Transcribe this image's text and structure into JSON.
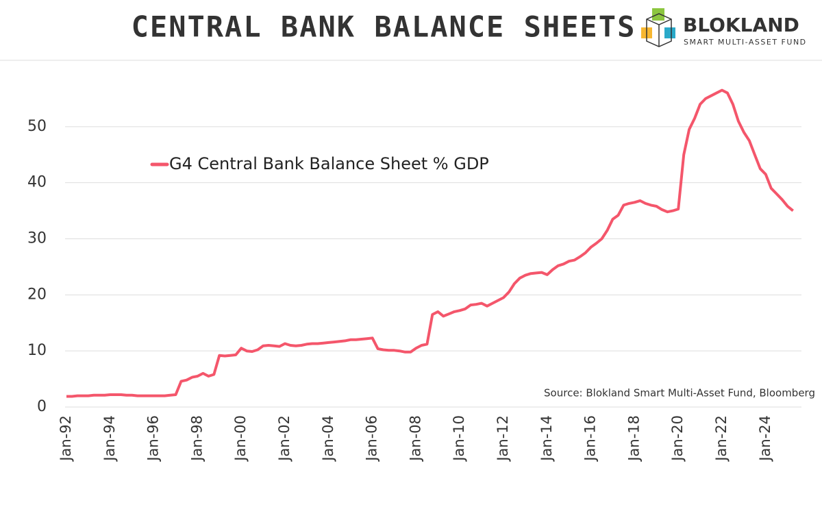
{
  "logo": {
    "name": "BLOKLAND",
    "tagline": "SMART MULTI-ASSET FUND"
  },
  "chart_data": {
    "type": "line",
    "title": "CENTRAL BANK BALANCE SHEETS",
    "source": "Source: Blokland Smart Multi-Asset Fund, Bloomberg",
    "categories": [
      "Jan-92",
      null,
      null,
      null,
      null,
      null,
      null,
      null,
      "Jan-94",
      null,
      null,
      null,
      null,
      null,
      null,
      null,
      "Jan-96",
      null,
      null,
      null,
      null,
      null,
      null,
      null,
      "Jan-98",
      null,
      null,
      null,
      null,
      null,
      null,
      null,
      "Jan-00",
      null,
      null,
      null,
      null,
      null,
      null,
      null,
      "Jan-02",
      null,
      null,
      null,
      null,
      null,
      null,
      null,
      "Jan-04",
      null,
      null,
      null,
      null,
      null,
      null,
      null,
      "Jan-06",
      null,
      null,
      null,
      null,
      null,
      null,
      null,
      "Jan-08",
      null,
      null,
      null,
      null,
      null,
      null,
      null,
      "Jan-10",
      null,
      null,
      null,
      null,
      null,
      null,
      null,
      "Jan-12",
      null,
      null,
      null,
      null,
      null,
      null,
      null,
      "Jan-14",
      null,
      null,
      null,
      null,
      null,
      null,
      null,
      "Jan-16",
      null,
      null,
      null,
      null,
      null,
      null,
      null,
      "Jan-18",
      null,
      null,
      null,
      null,
      null,
      null,
      null,
      "Jan-20",
      null,
      null,
      null,
      null,
      null,
      null,
      null,
      "Jan-22",
      null,
      null,
      null,
      null,
      null,
      null,
      null,
      "Jan-24",
      null,
      null,
      null,
      null,
      null
    ],
    "series": [
      {
        "name": "G4 Central Bank Balance Sheet % GDP",
        "color": "#f4566b",
        "values": [
          1.9,
          1.9,
          2.0,
          2.0,
          2.0,
          2.1,
          2.1,
          2.1,
          2.2,
          2.2,
          2.2,
          2.1,
          2.1,
          2.0,
          2.0,
          2.0,
          2.0,
          2.0,
          2.0,
          2.1,
          2.2,
          4.6,
          4.8,
          5.3,
          5.5,
          6.0,
          5.5,
          5.8,
          9.2,
          9.1,
          9.2,
          9.3,
          10.5,
          10.0,
          9.9,
          10.2,
          10.9,
          11.0,
          10.9,
          10.8,
          11.3,
          11.0,
          10.9,
          11.0,
          11.2,
          11.3,
          11.3,
          11.4,
          11.5,
          11.6,
          11.7,
          11.8,
          12.0,
          12.0,
          12.1,
          12.2,
          12.3,
          10.4,
          10.2,
          10.1,
          10.1,
          10.0,
          9.8,
          9.8,
          10.5,
          11.0,
          11.2,
          16.5,
          17.0,
          16.2,
          16.6,
          17.0,
          17.2,
          17.5,
          18.2,
          18.3,
          18.5,
          18.0,
          18.5,
          19.0,
          19.5,
          20.5,
          22.0,
          23.0,
          23.5,
          23.8,
          23.9,
          24.0,
          23.6,
          24.5,
          25.2,
          25.5,
          26.0,
          26.2,
          26.8,
          27.5,
          28.5,
          29.2,
          30.0,
          31.5,
          33.5,
          34.2,
          36.0,
          36.3,
          36.5,
          36.8,
          36.3,
          36.0,
          35.8,
          35.2,
          34.8,
          35.0,
          35.3,
          45.0,
          49.5,
          51.5,
          54.0,
          55.0,
          55.5,
          56.0,
          56.5,
          56.0,
          54.0,
          51.0,
          49.0,
          47.5,
          45.0,
          42.5,
          41.5,
          39.0,
          38.0,
          37.0,
          35.8,
          35.0
        ]
      }
    ],
    "ylim": [
      0,
      60
    ],
    "yticks": [
      0,
      10,
      20,
      30,
      40,
      50
    ],
    "grid": true
  }
}
